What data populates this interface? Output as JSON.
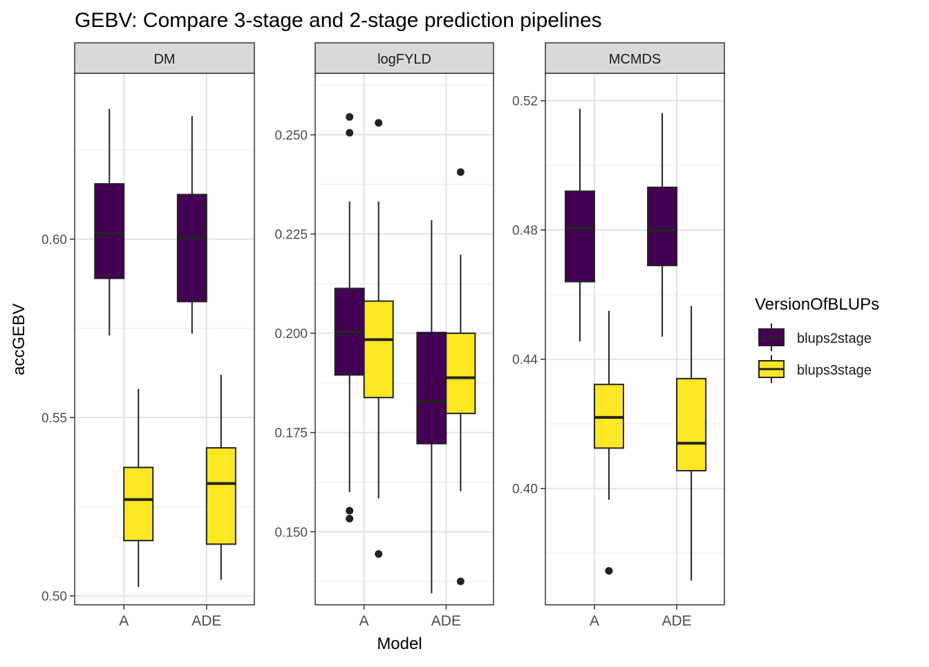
{
  "chart_data": {
    "type": "boxplot",
    "title": "GEBV: Compare 3-stage and 2-stage prediction pipelines",
    "xlabel": "Model",
    "ylabel": "accGEBV",
    "categories": [
      "A",
      "ADE"
    ],
    "legend": {
      "title": "VersionOfBLUPs",
      "placement": "right",
      "entries": [
        {
          "name": "blups2stage",
          "color": "#440154"
        },
        {
          "name": "blups3stage",
          "color": "#FDE725"
        }
      ]
    },
    "facets": [
      {
        "name": "DM",
        "ylim": [
          0.4975,
          0.6465
        ],
        "yticks": [
          0.5,
          0.55,
          0.6
        ],
        "ytick_labels": [
          "0.50",
          "0.55",
          "0.60"
        ],
        "boxes": [
          {
            "model": "A",
            "series": "blups2stage",
            "min": 0.573,
            "q1": 0.589,
            "median": 0.6015,
            "q3": 0.6155,
            "max": 0.6365,
            "outliers": []
          },
          {
            "model": "ADE",
            "series": "blups2stage",
            "min": 0.5735,
            "q1": 0.5825,
            "median": 0.6005,
            "q3": 0.6125,
            "max": 0.6345,
            "outliers": []
          },
          {
            "model": "A",
            "series": "blups3stage",
            "min": 0.5025,
            "q1": 0.5155,
            "median": 0.527,
            "q3": 0.536,
            "max": 0.558,
            "outliers": []
          },
          {
            "model": "ADE",
            "series": "blups3stage",
            "min": 0.5045,
            "q1": 0.5145,
            "median": 0.5315,
            "q3": 0.5415,
            "max": 0.562,
            "outliers": []
          }
        ]
      },
      {
        "name": "logFYLD",
        "ylim": [
          0.1316,
          0.2655
        ],
        "yticks": [
          0.15,
          0.175,
          0.2,
          0.225,
          0.25
        ],
        "ytick_labels": [
          "0.150",
          "0.175",
          "0.200",
          "0.225",
          "0.250"
        ],
        "boxes": [
          {
            "model": "A",
            "series": "blups2stage",
            "min": 0.16,
            "q1": 0.1895,
            "median": 0.2002,
            "q3": 0.2113,
            "max": 0.2332,
            "outliers": [
              0.2545,
              0.2505,
              0.1553,
              0.1533
            ]
          },
          {
            "model": "ADE",
            "series": "blups2stage",
            "min": 0.1345,
            "q1": 0.1722,
            "median": 0.1829,
            "q3": 0.2002,
            "max": 0.2285,
            "outliers": []
          },
          {
            "model": "A",
            "series": "blups3stage",
            "min": 0.1584,
            "q1": 0.1838,
            "median": 0.1984,
            "q3": 0.2081,
            "max": 0.2332,
            "outliers": [
              0.253,
              0.1444
            ]
          },
          {
            "model": "ADE",
            "series": "blups3stage",
            "min": 0.1602,
            "q1": 0.1798,
            "median": 0.1888,
            "q3": 0.2,
            "max": 0.2198,
            "outliers": [
              0.2406,
              0.1375
            ]
          }
        ]
      },
      {
        "name": "MCMDS",
        "ylim": [
          0.364,
          0.5285
        ],
        "yticks": [
          0.4,
          0.44,
          0.48,
          0.52
        ],
        "ytick_labels": [
          "0.40",
          "0.44",
          "0.48",
          "0.52"
        ],
        "boxes": [
          {
            "model": "A",
            "series": "blups2stage",
            "min": 0.4455,
            "q1": 0.464,
            "median": 0.4805,
            "q3": 0.492,
            "max": 0.5175,
            "outliers": []
          },
          {
            "model": "ADE",
            "series": "blups2stage",
            "min": 0.447,
            "q1": 0.469,
            "median": 0.48,
            "q3": 0.4932,
            "max": 0.5162,
            "outliers": []
          },
          {
            "model": "A",
            "series": "blups3stage",
            "min": 0.3965,
            "q1": 0.4125,
            "median": 0.422,
            "q3": 0.4322,
            "max": 0.455,
            "outliers": [
              0.3745
            ]
          },
          {
            "model": "ADE",
            "series": "blups3stage",
            "min": 0.3715,
            "q1": 0.4055,
            "median": 0.414,
            "q3": 0.434,
            "max": 0.4565,
            "outliers": []
          }
        ]
      }
    ]
  }
}
